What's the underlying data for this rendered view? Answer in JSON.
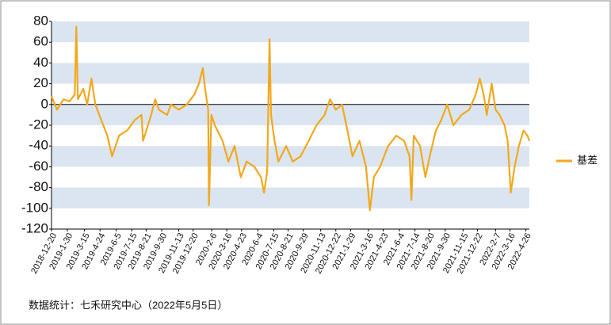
{
  "chart_data": {
    "type": "line",
    "source": "数据统计：七禾研究中心（2022年5月5日）",
    "series": [
      {
        "name": "基差",
        "color": "#f2a81d",
        "x": [
          "2018-12-20",
          "2019-1-3",
          "2019-1-20",
          "2019-2-5",
          "2019-2-18",
          "2019-2-22",
          "2019-2-26",
          "2019-3-12",
          "2019-3-22",
          "2019-4-2",
          "2019-4-12",
          "2019-4-22",
          "2019-5-13",
          "2019-5-25",
          "2019-6-12",
          "2019-7-3",
          "2019-7-23",
          "2019-8-9",
          "2019-8-13",
          "2019-9-3",
          "2019-9-13",
          "2019-9-23",
          "2019-10-14",
          "2019-10-24",
          "2019-11-13",
          "2019-12-4",
          "2019-12-24",
          "2020-1-4",
          "2020-1-14",
          "2020-1-20",
          "2020-1-28",
          "2020-1-30",
          "2020-2-5",
          "2020-2-14",
          "2020-3-5",
          "2020-3-20",
          "2020-4-5",
          "2020-4-21",
          "2020-5-6",
          "2020-5-26",
          "2020-6-12",
          "2020-6-20",
          "2020-6-28",
          "2020-7-4",
          "2020-7-8",
          "2020-7-17",
          "2020-7-27",
          "2020-8-16",
          "2020-9-2",
          "2020-9-22",
          "2020-10-13",
          "2020-11-2",
          "2020-11-23",
          "2020-12-7",
          "2020-12-22",
          "2021-1-7",
          "2021-1-21",
          "2021-2-3",
          "2021-2-21",
          "2021-3-10",
          "2021-3-20",
          "2021-3-30",
          "2021-4-15",
          "2021-5-6",
          "2021-5-27",
          "2021-6-16",
          "2021-6-30",
          "2021-7-5",
          "2021-7-11",
          "2021-7-27",
          "2021-8-10",
          "2021-8-21",
          "2021-9-6",
          "2021-9-20",
          "2021-10-5",
          "2021-10-21",
          "2021-11-11",
          "2021-12-1",
          "2021-12-18",
          "2021-12-28",
          "2022-1-7",
          "2022-1-15",
          "2022-1-28",
          "2022-2-7",
          "2022-2-17",
          "2022-3-2",
          "2022-3-10",
          "2022-3-18",
          "2022-3-28",
          "2022-4-8",
          "2022-4-20",
          "2022-4-30",
          "2022-5-5"
        ],
        "values": [
          8,
          -5,
          5,
          3,
          10,
          75,
          5,
          15,
          0,
          25,
          0,
          -10,
          -30,
          -50,
          -30,
          -25,
          -15,
          -10,
          -35,
          -10,
          5,
          -5,
          -10,
          0,
          -5,
          0,
          10,
          20,
          35,
          15,
          -5,
          -97,
          -10,
          -20,
          -35,
          -55,
          -40,
          -70,
          -55,
          -60,
          -70,
          -85,
          -65,
          63,
          -10,
          -35,
          -55,
          -40,
          -55,
          -50,
          -35,
          -20,
          -10,
          5,
          -5,
          0,
          -25,
          -50,
          -35,
          -60,
          -102,
          -70,
          -60,
          -40,
          -30,
          -35,
          -50,
          -92,
          -30,
          -40,
          -70,
          -50,
          -25,
          -15,
          0,
          -20,
          -10,
          -5,
          10,
          25,
          10,
          -10,
          20,
          -5,
          -10,
          -20,
          -35,
          -85,
          -60,
          -40,
          -25,
          -30,
          -35
        ]
      }
    ],
    "xlim": [
      "2018-12-20",
      "2022-5-5"
    ],
    "xticks": [
      "2018-12-20",
      "2019-1-30",
      "2019-3-15",
      "2019-4-24",
      "2019-6-5",
      "2019-7-15",
      "2019-8-21",
      "2019-9-30",
      "2019-11-13",
      "2019-12-20",
      "2020-2-6",
      "2020-3-16",
      "2020-4-23",
      "2020-6-4",
      "2020-7-15",
      "2020-8-21",
      "2020-9-29",
      "2020-11-13",
      "2020-12-22",
      "2021-1-29",
      "2021-3-16",
      "2021-4-23",
      "2021-6-4",
      "2021-7-14",
      "2021-8-20",
      "2021-9-30",
      "2021-11-15",
      "2021-12-22",
      "2022-2-7",
      "2022-3-16",
      "2022-4-26"
    ],
    "ylim": [
      -120,
      80
    ],
    "yticks": [
      80,
      60,
      40,
      20,
      0,
      -20,
      -40,
      -60,
      -80,
      -100,
      -120
    ],
    "band_color": "#dbe5f1",
    "legend": "right"
  }
}
